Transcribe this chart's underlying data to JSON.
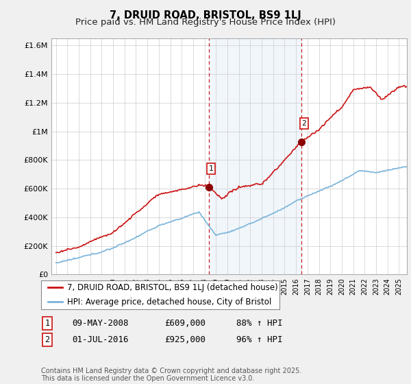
{
  "title": "7, DRUID ROAD, BRISTOL, BS9 1LJ",
  "subtitle": "Price paid vs. HM Land Registry's House Price Index (HPI)",
  "ylim": [
    0,
    1650000
  ],
  "yticks": [
    0,
    200000,
    400000,
    600000,
    800000,
    1000000,
    1200000,
    1400000,
    1600000
  ],
  "ytick_labels": [
    "£0",
    "£200K",
    "£400K",
    "£600K",
    "£800K",
    "£1M",
    "£1.2M",
    "£1.4M",
    "£1.6M"
  ],
  "sale1_year": 2008.37,
  "sale1_price": 609000,
  "sale1_label": "1",
  "sale2_year": 2016.5,
  "sale2_price": 925000,
  "sale2_label": "2",
  "hpi_color": "#7ab3d9",
  "price_color": "#cc1111",
  "marker_color": "#8b0000",
  "shading_color": "#d8e8f5",
  "vline_color": "#cc2222",
  "background_color": "#f0f0f0",
  "plot_bg_color": "#ffffff",
  "grid_color": "#cccccc",
  "legend_label_price": "7, DRUID ROAD, BRISTOL, BS9 1LJ (detached house)",
  "legend_label_hpi": "HPI: Average price, detached house, City of Bristol",
  "table_row1": [
    "1",
    "09-MAY-2008",
    "£609,000",
    "88% ↑ HPI"
  ],
  "table_row2": [
    "2",
    "01-JUL-2016",
    "£925,000",
    "96% ↑ HPI"
  ],
  "footnote": "Contains HM Land Registry data © Crown copyright and database right 2025.\nThis data is licensed under the Open Government Licence v3.0.",
  "title_fontsize": 10.5,
  "subtitle_fontsize": 9.5,
  "tick_fontsize": 8,
  "legend_fontsize": 8.5,
  "table_fontsize": 9
}
